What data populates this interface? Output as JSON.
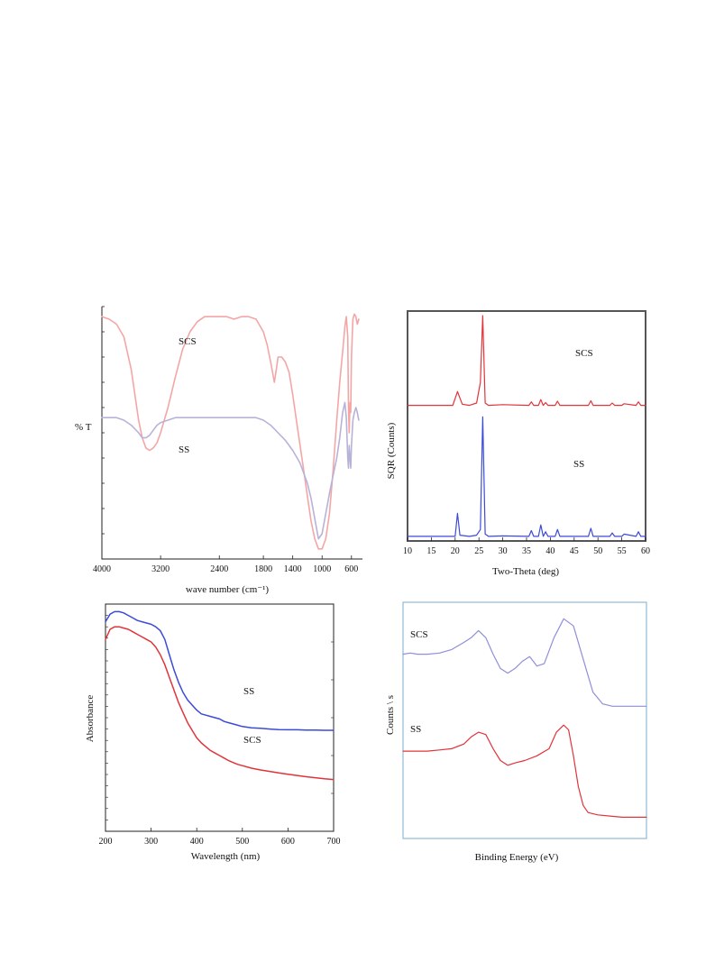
{
  "chart_data": [
    {
      "id": "ftir",
      "type": "line",
      "xlabel": "wave number (cm⁻¹)",
      "ylabel": "% T",
      "xlim": [
        4000,
        450
      ],
      "x_reversed": true,
      "xticks": [
        4000,
        3200,
        2400,
        1800,
        1400,
        1000,
        600
      ],
      "series": [
        {
          "name": "SCS",
          "color": "#f4a6a6",
          "x": [
            4000,
            3900,
            3800,
            3700,
            3600,
            3500,
            3450,
            3400,
            3350,
            3300,
            3250,
            3200,
            3100,
            3000,
            2900,
            2800,
            2700,
            2600,
            2500,
            2400,
            2300,
            2200,
            2100,
            2000,
            1900,
            1800,
            1750,
            1700,
            1650,
            1620,
            1600,
            1550,
            1500,
            1450,
            1400,
            1350,
            1300,
            1250,
            1200,
            1150,
            1100,
            1050,
            1000,
            950,
            900,
            850,
            800,
            760,
            720,
            690,
            670,
            650,
            640,
            630,
            620,
            610,
            600,
            580,
            560,
            540,
            520,
            500
          ],
          "y": [
            96,
            95,
            93,
            88,
            75,
            55,
            48,
            44,
            43,
            44,
            46,
            50,
            60,
            72,
            83,
            90,
            94,
            96,
            96,
            96,
            96,
            95,
            96,
            96,
            95,
            90,
            85,
            78,
            70,
            76,
            80,
            80,
            78,
            74,
            65,
            55,
            45,
            35,
            25,
            15,
            8,
            4,
            4,
            8,
            18,
            35,
            55,
            70,
            82,
            92,
            96,
            88,
            60,
            50,
            62,
            58,
            80,
            95,
            97,
            96,
            93,
            95
          ]
        },
        {
          "name": "SS",
          "color": "#b7b3d8",
          "x": [
            4000,
            3900,
            3800,
            3700,
            3600,
            3500,
            3450,
            3400,
            3350,
            3300,
            3250,
            3200,
            3100,
            3000,
            2900,
            2800,
            2700,
            2600,
            2500,
            2400,
            2300,
            2200,
            2100,
            2000,
            1900,
            1800,
            1700,
            1600,
            1500,
            1400,
            1300,
            1200,
            1150,
            1100,
            1050,
            1000,
            950,
            900,
            850,
            800,
            760,
            720,
            690,
            670,
            650,
            640,
            630,
            620,
            610,
            600,
            580,
            560,
            540,
            520,
            500
          ],
          "y": [
            56,
            56,
            56,
            55,
            53,
            50,
            48,
            48,
            49,
            51,
            53,
            54,
            55,
            56,
            56,
            56,
            56,
            56,
            56,
            56,
            56,
            56,
            56,
            56,
            56,
            55,
            53,
            50,
            47,
            43,
            38,
            30,
            24,
            16,
            8,
            10,
            18,
            26,
            33,
            40,
            48,
            58,
            62,
            56,
            40,
            36,
            45,
            40,
            36,
            45,
            55,
            58,
            60,
            58,
            55
          ]
        }
      ],
      "series_labels": [
        "SCS",
        "SS"
      ]
    },
    {
      "id": "xrd",
      "type": "line",
      "xlabel": "Two-Theta (deg)",
      "ylabel": "SQR (Counts)",
      "xlim": [
        10,
        60
      ],
      "xticks": [
        10,
        15,
        20,
        25,
        30,
        35,
        40,
        45,
        50,
        55,
        60
      ],
      "series": [
        {
          "name": "SCS",
          "color": "#e0343a",
          "x": [
            10,
            19.5,
            20.5,
            21.5,
            23,
            24.5,
            25.3,
            25.8,
            26.3,
            27,
            30,
            35.5,
            36,
            36.5,
            37.5,
            38,
            38.5,
            39,
            39.5,
            41,
            41.5,
            42,
            48,
            48.5,
            49,
            52.5,
            53,
            53.5,
            55,
            55.5,
            58,
            58.5,
            59,
            60
          ],
          "y": [
            0.59,
            0.59,
            0.65,
            0.595,
            0.59,
            0.6,
            0.69,
            0.98,
            0.6,
            0.59,
            0.593,
            0.59,
            0.605,
            0.59,
            0.59,
            0.615,
            0.59,
            0.602,
            0.59,
            0.59,
            0.608,
            0.59,
            0.59,
            0.61,
            0.59,
            0.59,
            0.6,
            0.59,
            0.59,
            0.597,
            0.59,
            0.605,
            0.59,
            0.59
          ]
        },
        {
          "name": "SS",
          "color": "#3b4ad8",
          "x": [
            10,
            20,
            20.5,
            21,
            23,
            24.5,
            25.3,
            25.8,
            26.3,
            27,
            30,
            35.5,
            36,
            36.5,
            37.5,
            38,
            38.5,
            39,
            39.5,
            41,
            41.5,
            42,
            48,
            48.5,
            49,
            52.5,
            53,
            53.5,
            55,
            55.5,
            58,
            58.5,
            59,
            60
          ],
          "y": [
            0.02,
            0.02,
            0.12,
            0.025,
            0.02,
            0.025,
            0.05,
            0.54,
            0.03,
            0.02,
            0.022,
            0.02,
            0.045,
            0.02,
            0.02,
            0.07,
            0.02,
            0.04,
            0.02,
            0.02,
            0.05,
            0.02,
            0.02,
            0.055,
            0.02,
            0.02,
            0.035,
            0.02,
            0.02,
            0.03,
            0.02,
            0.04,
            0.02,
            0.02
          ]
        }
      ],
      "series_labels": [
        "SCS",
        "SS"
      ]
    },
    {
      "id": "uv",
      "type": "line",
      "xlabel": "Wavelength (nm)",
      "ylabel": "Absorbance",
      "xlim": [
        200,
        700
      ],
      "xticks": [
        200,
        300,
        400,
        500,
        600,
        700
      ],
      "series": [
        {
          "name": "SS",
          "color": "#3b4ad8",
          "x": [
            200,
            210,
            220,
            230,
            240,
            250,
            260,
            270,
            280,
            290,
            300,
            310,
            320,
            330,
            340,
            350,
            360,
            370,
            380,
            390,
            400,
            410,
            420,
            430,
            440,
            450,
            460,
            470,
            480,
            490,
            500,
            520,
            540,
            560,
            580,
            600,
            620,
            640,
            660,
            680,
            700
          ],
          "y": [
            0.93,
            0.96,
            0.97,
            0.97,
            0.965,
            0.955,
            0.945,
            0.935,
            0.93,
            0.925,
            0.92,
            0.91,
            0.895,
            0.86,
            0.8,
            0.74,
            0.69,
            0.65,
            0.62,
            0.6,
            0.58,
            0.565,
            0.56,
            0.555,
            0.55,
            0.545,
            0.535,
            0.53,
            0.525,
            0.52,
            0.515,
            0.51,
            0.508,
            0.505,
            0.503,
            0.502,
            0.502,
            0.501,
            0.501,
            0.5,
            0.5
          ]
        },
        {
          "name": "SCS",
          "color": "#e0343a",
          "x": [
            200,
            210,
            220,
            230,
            240,
            250,
            260,
            270,
            280,
            290,
            300,
            310,
            320,
            330,
            340,
            350,
            360,
            370,
            380,
            390,
            400,
            410,
            420,
            430,
            440,
            450,
            460,
            470,
            480,
            490,
            500,
            520,
            540,
            560,
            580,
            600,
            620,
            640,
            660,
            680,
            700
          ],
          "y": [
            0.86,
            0.9,
            0.91,
            0.91,
            0.905,
            0.9,
            0.89,
            0.88,
            0.87,
            0.86,
            0.85,
            0.83,
            0.8,
            0.76,
            0.71,
            0.66,
            0.61,
            0.57,
            0.53,
            0.5,
            0.47,
            0.45,
            0.435,
            0.42,
            0.41,
            0.4,
            0.39,
            0.38,
            0.372,
            0.365,
            0.36,
            0.35,
            0.343,
            0.337,
            0.331,
            0.326,
            0.321,
            0.316,
            0.312,
            0.308,
            0.305
          ]
        }
      ],
      "series_labels": [
        "SS",
        "SCS"
      ]
    },
    {
      "id": "xps",
      "type": "line",
      "xlabel": "Binding Energy (eV)",
      "ylabel": "Counts \\ s",
      "series": [
        {
          "name": "SCS",
          "color": "#8f8fd8",
          "x": [
            0,
            0.03,
            0.06,
            0.1,
            0.15,
            0.2,
            0.25,
            0.28,
            0.31,
            0.34,
            0.37,
            0.4,
            0.43,
            0.46,
            0.49,
            0.52,
            0.55,
            0.58,
            0.62,
            0.66,
            0.7,
            0.74,
            0.78,
            0.82,
            0.86,
            0.9,
            0.95,
            1.0
          ],
          "y": [
            0.78,
            0.785,
            0.78,
            0.78,
            0.785,
            0.8,
            0.83,
            0.85,
            0.88,
            0.85,
            0.78,
            0.72,
            0.7,
            0.72,
            0.75,
            0.77,
            0.73,
            0.74,
            0.85,
            0.93,
            0.9,
            0.76,
            0.62,
            0.57,
            0.56,
            0.56,
            0.56,
            0.56
          ]
        },
        {
          "name": "SS",
          "color": "#e0343a",
          "x": [
            0,
            0.05,
            0.1,
            0.15,
            0.2,
            0.25,
            0.28,
            0.31,
            0.34,
            0.37,
            0.4,
            0.43,
            0.46,
            0.5,
            0.55,
            0.6,
            0.63,
            0.66,
            0.68,
            0.7,
            0.72,
            0.74,
            0.76,
            0.8,
            0.85,
            0.9,
            0.95,
            1.0
          ],
          "y": [
            0.37,
            0.37,
            0.37,
            0.375,
            0.38,
            0.4,
            0.43,
            0.45,
            0.44,
            0.38,
            0.33,
            0.31,
            0.32,
            0.33,
            0.35,
            0.38,
            0.45,
            0.48,
            0.46,
            0.35,
            0.22,
            0.14,
            0.11,
            0.1,
            0.095,
            0.09,
            0.09,
            0.09
          ]
        }
      ],
      "series_labels": [
        "SCS",
        "SS"
      ]
    }
  ]
}
